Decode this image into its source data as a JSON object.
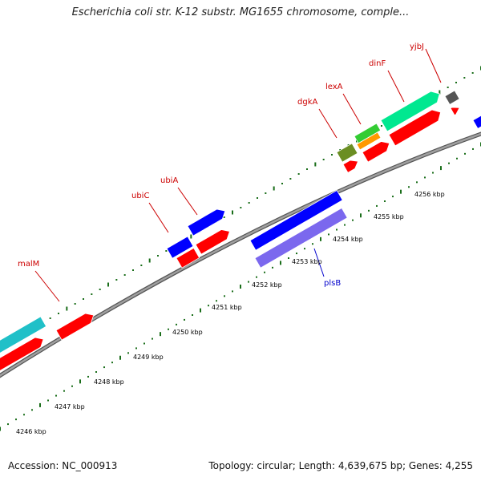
{
  "map": {
    "title": "Escherichia coli str. K-12 substr. MG1655 chromosome, comple...",
    "accession": "Accession: NC_000913",
    "summary": "Topology: circular; Length: 4,639,675 bp; Genes: 4,255"
  },
  "colors": {
    "backbone": "#808080",
    "backbone_edge": "#505050",
    "tick": "#1a6e1a",
    "label_red": "#cc0000",
    "label_blue": "#0000cc",
    "gene_red": "#ff0000",
    "gene_blue": "#0000ff",
    "gene_lavender": "#7b68ee",
    "gene_cyan": "#20c0c8",
    "gene_aquamarine": "#00e890",
    "gene_olive": "#6b8e23",
    "gene_green": "#33cc33",
    "gene_orange": "#ff9900",
    "gene_gray": "#555555"
  },
  "ticks": [
    {
      "label": "4246 kbp"
    },
    {
      "label": "4247 kbp"
    },
    {
      "label": "4248 kbp"
    },
    {
      "label": "4249 kbp"
    },
    {
      "label": "4250 kbp"
    },
    {
      "label": "4251 kbp"
    },
    {
      "label": "4252 kbp"
    },
    {
      "label": "4253 kbp"
    },
    {
      "label": "4254 kbp"
    },
    {
      "label": "4255 kbp"
    },
    {
      "label": "4256 kbp"
    }
  ],
  "labels": [
    {
      "name": "malM",
      "color": "label_red"
    },
    {
      "name": "ubiC",
      "color": "label_red"
    },
    {
      "name": "ubiA",
      "color": "label_red"
    },
    {
      "name": "dgkA",
      "color": "label_red"
    },
    {
      "name": "lexA",
      "color": "label_red"
    },
    {
      "name": "dinF",
      "color": "label_red"
    },
    {
      "name": "yjbJ",
      "color": "label_red"
    },
    {
      "name": "plsB",
      "color": "label_blue"
    }
  ]
}
